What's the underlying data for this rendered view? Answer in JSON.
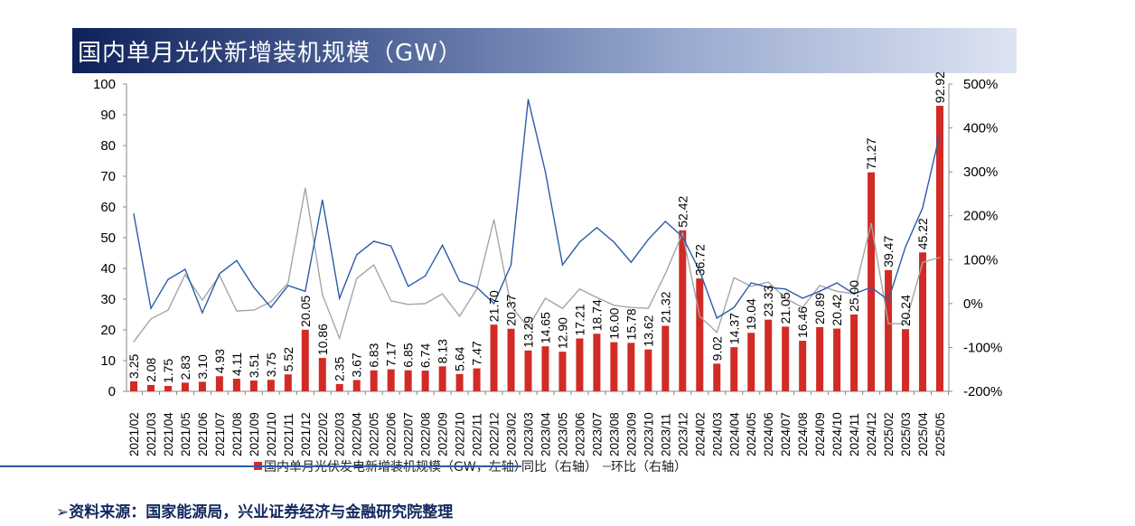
{
  "title": "国内单月光伏新增装机规模（GW）",
  "footer": "➢资料来源：国家能源局，兴业证券经济与金融研究院整理",
  "colors": {
    "bar": "#d12b26",
    "yoy": "#2a5caa",
    "mom": "#a6a6a6"
  },
  "chart_data": {
    "type": "bar+line",
    "title": "国内单月光伏新增装机规模（GW）",
    "categories": [
      "2021/02",
      "2021/03",
      "2021/04",
      "2021/05",
      "2021/06",
      "2021/07",
      "2021/08",
      "2021/09",
      "2021/10",
      "2021/11",
      "2021/12",
      "2022/02",
      "2022/03",
      "2022/04",
      "2022/05",
      "2022/06",
      "2022/07",
      "2022/08",
      "2022/09",
      "2022/10",
      "2022/11",
      "2022/12",
      "2023/02",
      "2023/03",
      "2023/04",
      "2023/05",
      "2023/06",
      "2023/07",
      "2023/08",
      "2023/09",
      "2023/10",
      "2023/11",
      "2023/12",
      "2024/02",
      "2024/03",
      "2024/04",
      "2024/05",
      "2024/06",
      "2024/07",
      "2024/08",
      "2024/09",
      "2024/10",
      "2024/11",
      "2024/12",
      "2025/02",
      "2025/03",
      "2025/04",
      "2025/05"
    ],
    "series": [
      {
        "name": "国内单月光伏发电新增装机规模（GW，左轴）",
        "axis": "left",
        "type": "bar",
        "values": [
          3.25,
          2.08,
          1.75,
          2.83,
          3.1,
          4.93,
          4.11,
          3.51,
          3.75,
          5.52,
          20.05,
          10.86,
          2.35,
          3.67,
          6.83,
          7.17,
          6.85,
          6.74,
          8.13,
          5.64,
          7.47,
          21.7,
          20.37,
          13.29,
          14.65,
          12.9,
          17.21,
          18.74,
          16.0,
          15.78,
          13.62,
          21.32,
          52.42,
          36.72,
          9.02,
          14.37,
          19.04,
          23.33,
          21.05,
          16.46,
          20.89,
          20.42,
          25.0,
          71.27,
          39.47,
          20.24,
          45.22,
          92.92
        ],
        "labels": [
          "3.25",
          "2.08",
          "1.75",
          "2.83",
          "3.10",
          "4.93",
          "4.11",
          "3.51",
          "3.75",
          "5.52",
          "20.05",
          "10.86",
          "2.35",
          "3.67",
          "6.83",
          "7.17",
          "6.85",
          "6.74",
          "8.13",
          "5.64",
          "7.47",
          "21.70",
          "20.37",
          "13.29",
          "14.65",
          "12.90",
          "17.21",
          "18.74",
          "16.00",
          "15.78",
          "13.62",
          "21.32",
          "52.42",
          "36.72",
          "9.02",
          "14.37",
          "19.04",
          "23.33",
          "21.05",
          "16.46",
          "20.89",
          "20.42",
          "25.00",
          "71.27",
          "39.47",
          "20.24",
          "45.22",
          "92.92"
        ]
      },
      {
        "name": "同比（右轴）",
        "axis": "right",
        "type": "line",
        "values": [
          204,
          -11,
          55,
          78,
          -21,
          68,
          98,
          37,
          -9,
          41,
          28,
          236,
          12,
          111,
          142,
          131,
          39,
          63,
          133,
          51,
          37,
          0,
          88,
          465,
          300,
          88,
          140,
          173,
          140,
          94,
          146,
          187,
          152,
          74,
          -33,
          -9,
          47,
          37,
          33,
          12,
          28,
          47,
          22,
          37,
          8,
          129,
          218,
          387
        ]
      },
      {
        "name": "环比（右轴）",
        "axis": "right",
        "type": "line",
        "values": [
          -87,
          -35,
          -15,
          66,
          8,
          64,
          -17,
          -15,
          4,
          47,
          263,
          20,
          -79,
          57,
          88,
          6,
          -2,
          0,
          22,
          -29,
          33,
          191,
          -6,
          -54,
          12,
          -11,
          33,
          14,
          -4,
          -9,
          -11,
          68,
          160,
          -29,
          -66,
          59,
          39,
          49,
          12,
          -9,
          41,
          28,
          22,
          183,
          -46,
          -46,
          94,
          105
        ]
      }
    ],
    "left_axis": {
      "range": [
        0,
        100
      ],
      "ticks": [
        "0",
        "10",
        "20",
        "30",
        "40",
        "50",
        "60",
        "70",
        "80",
        "90",
        "100"
      ]
    },
    "right_axis": {
      "range": [
        -200,
        500
      ],
      "ticks": [
        "-200%",
        "-100%",
        "0%",
        "100%",
        "200%",
        "300%",
        "400%",
        "500%"
      ]
    },
    "legend": {
      "position": "bottom",
      "items": [
        "国内单月光伏发电新增装机规模（GW，左轴）",
        "同比（右轴）",
        "环比（右轴）"
      ]
    },
    "grid": false
  }
}
